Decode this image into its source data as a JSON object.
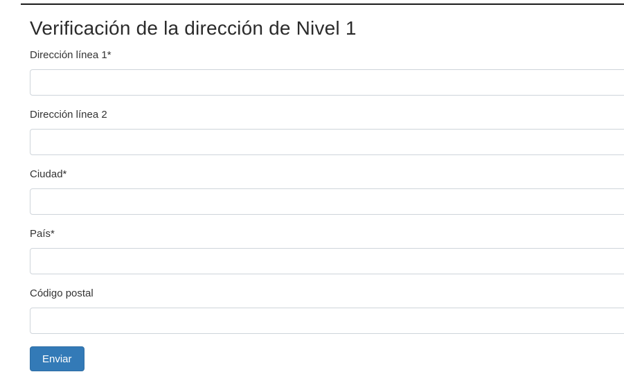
{
  "page": {
    "title": "Verificación de la dirección de Nivel 1"
  },
  "form": {
    "fields": [
      {
        "label": "Dirección línea 1",
        "required_marker": "*",
        "value": ""
      },
      {
        "label": "Dirección línea 2",
        "required_marker": "",
        "value": ""
      },
      {
        "label": "Ciudad",
        "required_marker": "*",
        "value": ""
      },
      {
        "label": "País",
        "required_marker": "*",
        "value": ""
      },
      {
        "label": "Código postal",
        "required_marker": "",
        "value": ""
      }
    ],
    "submit_label": "Enviar"
  },
  "colors": {
    "primary_button": "#337ab7",
    "primary_button_border": "#2e6da4",
    "input_border": "#ced4da",
    "text": "#333333",
    "top_rule": "#1b1b1b"
  }
}
